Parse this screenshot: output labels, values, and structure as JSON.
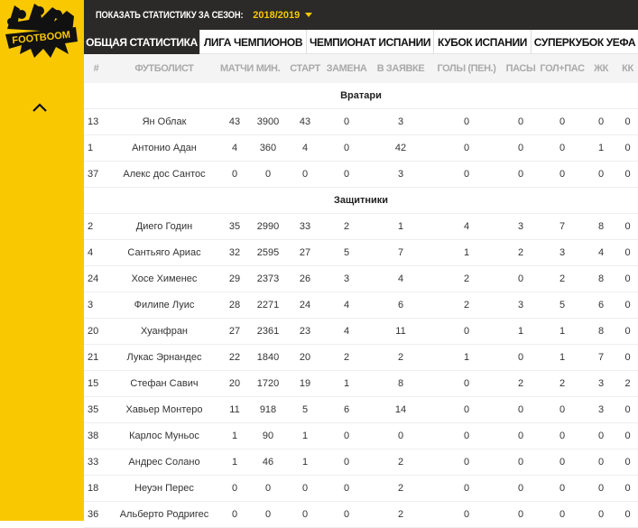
{
  "brand": {
    "logo_text": "FOOTBOOM",
    "colors": {
      "yellow": "#f9c800",
      "dark": "#2b2a28"
    }
  },
  "sidebar": {
    "collapse_icon": "chevron-up-icon"
  },
  "season": {
    "label": "ПОКАЗАТЬ СТАТИСТИКУ ЗА СЕЗОН:",
    "value": "2018/2019"
  },
  "tabs": [
    {
      "label": "ОБЩАЯ СТАТИСТИКА",
      "active": true
    },
    {
      "label": "ЛИГА ЧЕМПИОНОВ"
    },
    {
      "label": "ЧЕМПИОНАТ ИСПАНИИ"
    },
    {
      "label": "КУБОК ИСПАНИИ"
    },
    {
      "label": "СУПЕРКУБОК УЕФА"
    }
  ],
  "columns": [
    "#",
    "ФУТБОЛИСТ",
    "МАТЧИ",
    "МИН.",
    "СТАРТ",
    "ЗАМЕНА",
    "В ЗАЯВКЕ",
    "ГОЛЫ (ПЕН.)",
    "ПАСЫ",
    "ГОЛ+ПАС",
    "ЖК",
    "КК"
  ],
  "sections": [
    {
      "title": "Вратари",
      "rows": [
        [
          "13",
          "Ян Облак",
          "43",
          "3900",
          "43",
          "0",
          "3",
          "0",
          "0",
          "0",
          "0",
          "0"
        ],
        [
          "1",
          "Антонио Адан",
          "4",
          "360",
          "4",
          "0",
          "42",
          "0",
          "0",
          "0",
          "1",
          "0"
        ],
        [
          "37",
          "Алекс дос Сантос",
          "0",
          "0",
          "0",
          "0",
          "3",
          "0",
          "0",
          "0",
          "0",
          "0"
        ]
      ]
    },
    {
      "title": "Защитники",
      "rows": [
        [
          "2",
          "Диего Годин",
          "35",
          "2990",
          "33",
          "2",
          "1",
          "4",
          "3",
          "7",
          "8",
          "0"
        ],
        [
          "4",
          "Сантьяго Ариас",
          "32",
          "2595",
          "27",
          "5",
          "7",
          "1",
          "2",
          "3",
          "4",
          "0"
        ],
        [
          "24",
          "Хосе Хименес",
          "29",
          "2373",
          "26",
          "3",
          "4",
          "2",
          "0",
          "2",
          "8",
          "0"
        ],
        [
          "3",
          "Филипе Луис",
          "28",
          "2271",
          "24",
          "4",
          "6",
          "2",
          "3",
          "5",
          "6",
          "0"
        ],
        [
          "20",
          "Хуанфран",
          "27",
          "2361",
          "23",
          "4",
          "11",
          "0",
          "1",
          "1",
          "8",
          "0"
        ],
        [
          "21",
          "Лукас Эрнандес",
          "22",
          "1840",
          "20",
          "2",
          "2",
          "1",
          "0",
          "1",
          "7",
          "0"
        ],
        [
          "15",
          "Стефан Савич",
          "20",
          "1720",
          "19",
          "1",
          "8",
          "0",
          "2",
          "2",
          "3",
          "2"
        ],
        [
          "35",
          "Хавьер Монтеро",
          "11",
          "918",
          "5",
          "6",
          "14",
          "0",
          "0",
          "0",
          "3",
          "0"
        ],
        [
          "38",
          "Карлос Муньос",
          "1",
          "90",
          "1",
          "0",
          "0",
          "0",
          "0",
          "0",
          "0",
          "0"
        ],
        [
          "33",
          "Андрес Солано",
          "1",
          "46",
          "1",
          "0",
          "2",
          "0",
          "0",
          "0",
          "0",
          "0"
        ],
        [
          "18",
          "Неуэн Перес",
          "0",
          "0",
          "0",
          "0",
          "2",
          "0",
          "0",
          "0",
          "0",
          "0"
        ],
        [
          "36",
          "Альберто Родригес",
          "0",
          "0",
          "0",
          "0",
          "2",
          "0",
          "0",
          "0",
          "0",
          "0"
        ]
      ]
    }
  ]
}
